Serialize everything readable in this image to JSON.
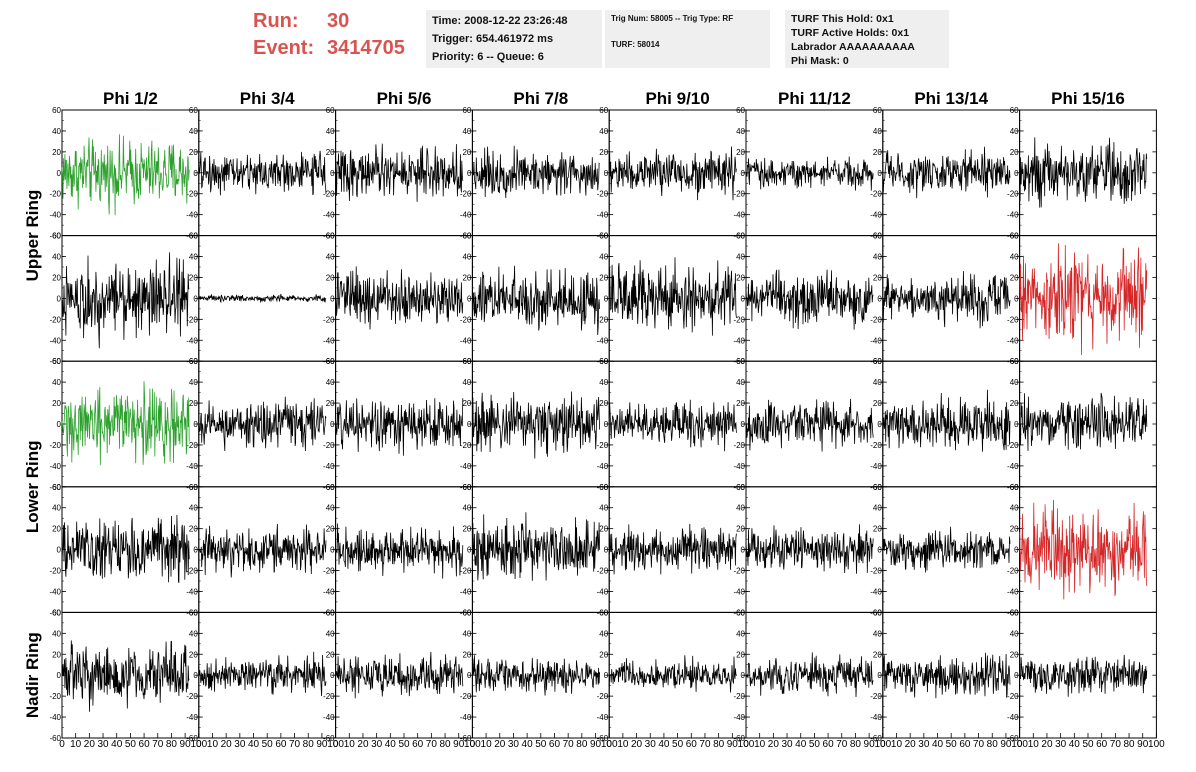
{
  "header": {
    "run_label": "Run:",
    "run_value": "30",
    "event_label": "Event:",
    "event_value": "3414705",
    "time_text": "Time: 2008-12-22 23:26:48",
    "trigger_text": "Trigger: 654.461972 ms",
    "priority_text": "Priority: 6 -- Queue: 6",
    "trig_num_text": "Trig Num: 58005 -- Trig Type: RF",
    "turf_text": "TURF: 58014",
    "turf_hold_text": "TURF This Hold: 0x1",
    "turf_active_text": "TURF Active Holds: 0x1",
    "labrador_text": "Labrador AAAAAAAAAA",
    "phi_mask_text": "Phi Mask: 0"
  },
  "colors": {
    "normal": "#000000",
    "green": "#2ca02c",
    "red": "#d62728",
    "header_accent": "#d9534f"
  },
  "chart_data": {
    "type": "line",
    "columns": [
      "Phi 1/2",
      "Phi 3/4",
      "Phi 5/6",
      "Phi 7/8",
      "Phi 9/10",
      "Phi 11/12",
      "Phi 13/14",
      "Phi 15/16"
    ],
    "ring_groups": [
      {
        "label": "Upper Ring",
        "rows": [
          0,
          1
        ]
      },
      {
        "label": "Lower Ring",
        "rows": [
          2,
          3
        ]
      },
      {
        "label": "Nadir Ring",
        "rows": [
          4
        ]
      }
    ],
    "xlim": [
      0,
      100
    ],
    "xticks": [
      0,
      10,
      20,
      30,
      40,
      50,
      60,
      70,
      80,
      90,
      100
    ],
    "ylim": [
      -60,
      60
    ],
    "yticks": [
      -60,
      -40,
      -20,
      0,
      20,
      40,
      60
    ],
    "series": [
      {
        "row": 0,
        "col": 0,
        "color": "green",
        "amp": 15
      },
      {
        "row": 0,
        "col": 1,
        "color": "normal",
        "amp": 9
      },
      {
        "row": 0,
        "col": 2,
        "color": "normal",
        "amp": 11
      },
      {
        "row": 0,
        "col": 3,
        "color": "normal",
        "amp": 10
      },
      {
        "row": 0,
        "col": 4,
        "color": "normal",
        "amp": 10
      },
      {
        "row": 0,
        "col": 5,
        "color": "normal",
        "amp": 7
      },
      {
        "row": 0,
        "col": 6,
        "color": "normal",
        "amp": 9
      },
      {
        "row": 0,
        "col": 7,
        "color": "normal",
        "amp": 13
      },
      {
        "row": 1,
        "col": 0,
        "color": "normal",
        "amp": 17
      },
      {
        "row": 1,
        "col": 1,
        "color": "normal",
        "amp": 1.5
      },
      {
        "row": 1,
        "col": 2,
        "color": "normal",
        "amp": 12
      },
      {
        "row": 1,
        "col": 3,
        "color": "normal",
        "amp": 13
      },
      {
        "row": 1,
        "col": 4,
        "color": "normal",
        "amp": 15
      },
      {
        "row": 1,
        "col": 5,
        "color": "normal",
        "amp": 11
      },
      {
        "row": 1,
        "col": 6,
        "color": "normal",
        "amp": 11
      },
      {
        "row": 1,
        "col": 7,
        "color": "red",
        "amp": 19
      },
      {
        "row": 2,
        "col": 0,
        "color": "green",
        "amp": 16
      },
      {
        "row": 2,
        "col": 1,
        "color": "normal",
        "amp": 11
      },
      {
        "row": 2,
        "col": 2,
        "color": "normal",
        "amp": 12
      },
      {
        "row": 2,
        "col": 3,
        "color": "normal",
        "amp": 13
      },
      {
        "row": 2,
        "col": 4,
        "color": "normal",
        "amp": 10
      },
      {
        "row": 2,
        "col": 5,
        "color": "normal",
        "amp": 10
      },
      {
        "row": 2,
        "col": 6,
        "color": "normal",
        "amp": 12
      },
      {
        "row": 2,
        "col": 7,
        "color": "normal",
        "amp": 12
      },
      {
        "row": 3,
        "col": 0,
        "color": "normal",
        "amp": 14
      },
      {
        "row": 3,
        "col": 1,
        "color": "normal",
        "amp": 10
      },
      {
        "row": 3,
        "col": 2,
        "color": "normal",
        "amp": 10
      },
      {
        "row": 3,
        "col": 3,
        "color": "normal",
        "amp": 13
      },
      {
        "row": 3,
        "col": 4,
        "color": "normal",
        "amp": 10
      },
      {
        "row": 3,
        "col": 5,
        "color": "normal",
        "amp": 10
      },
      {
        "row": 3,
        "col": 6,
        "color": "normal",
        "amp": 9
      },
      {
        "row": 3,
        "col": 7,
        "color": "red",
        "amp": 19
      },
      {
        "row": 4,
        "col": 0,
        "color": "normal",
        "amp": 13
      },
      {
        "row": 4,
        "col": 1,
        "color": "normal",
        "amp": 8
      },
      {
        "row": 4,
        "col": 2,
        "color": "normal",
        "amp": 9
      },
      {
        "row": 4,
        "col": 3,
        "color": "normal",
        "amp": 8
      },
      {
        "row": 4,
        "col": 4,
        "color": "normal",
        "amp": 7
      },
      {
        "row": 4,
        "col": 5,
        "color": "normal",
        "amp": 9
      },
      {
        "row": 4,
        "col": 6,
        "color": "normal",
        "amp": 9
      },
      {
        "row": 4,
        "col": 7,
        "color": "normal",
        "amp": 8
      }
    ]
  }
}
